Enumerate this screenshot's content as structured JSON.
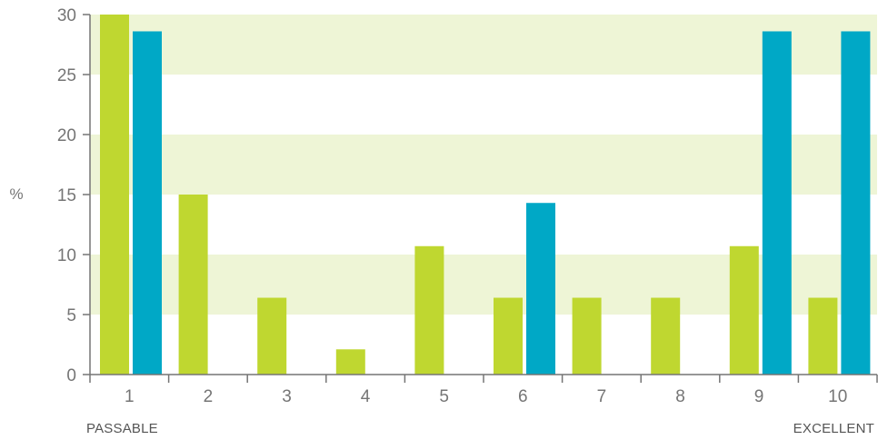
{
  "chart_data": {
    "type": "bar",
    "categories": [
      "1",
      "2",
      "3",
      "4",
      "5",
      "6",
      "7",
      "8",
      "9",
      "10"
    ],
    "series": [
      {
        "values": [
          30,
          15,
          6.4,
          2.1,
          10.7,
          6.4,
          6.4,
          6.4,
          10.7,
          6.4
        ]
      },
      {
        "values": [
          28.6,
          0,
          0,
          0,
          0,
          14.3,
          0,
          0,
          28.6,
          28.6
        ]
      }
    ],
    "ylabel": "%",
    "ylim": [
      0,
      30
    ],
    "yticks": [
      "0",
      "5",
      "10",
      "15",
      "20",
      "25",
      "30"
    ],
    "x_start_label": "PASSABLE",
    "x_end_label": "EXCELLENT",
    "bands": "alternating light green bands between 5-10, 15-20, 25-30",
    "colors": {
      "series1": "#bfd730",
      "series2": "#00a8c6",
      "band": "#eef5d6",
      "axis": "#757575"
    }
  }
}
